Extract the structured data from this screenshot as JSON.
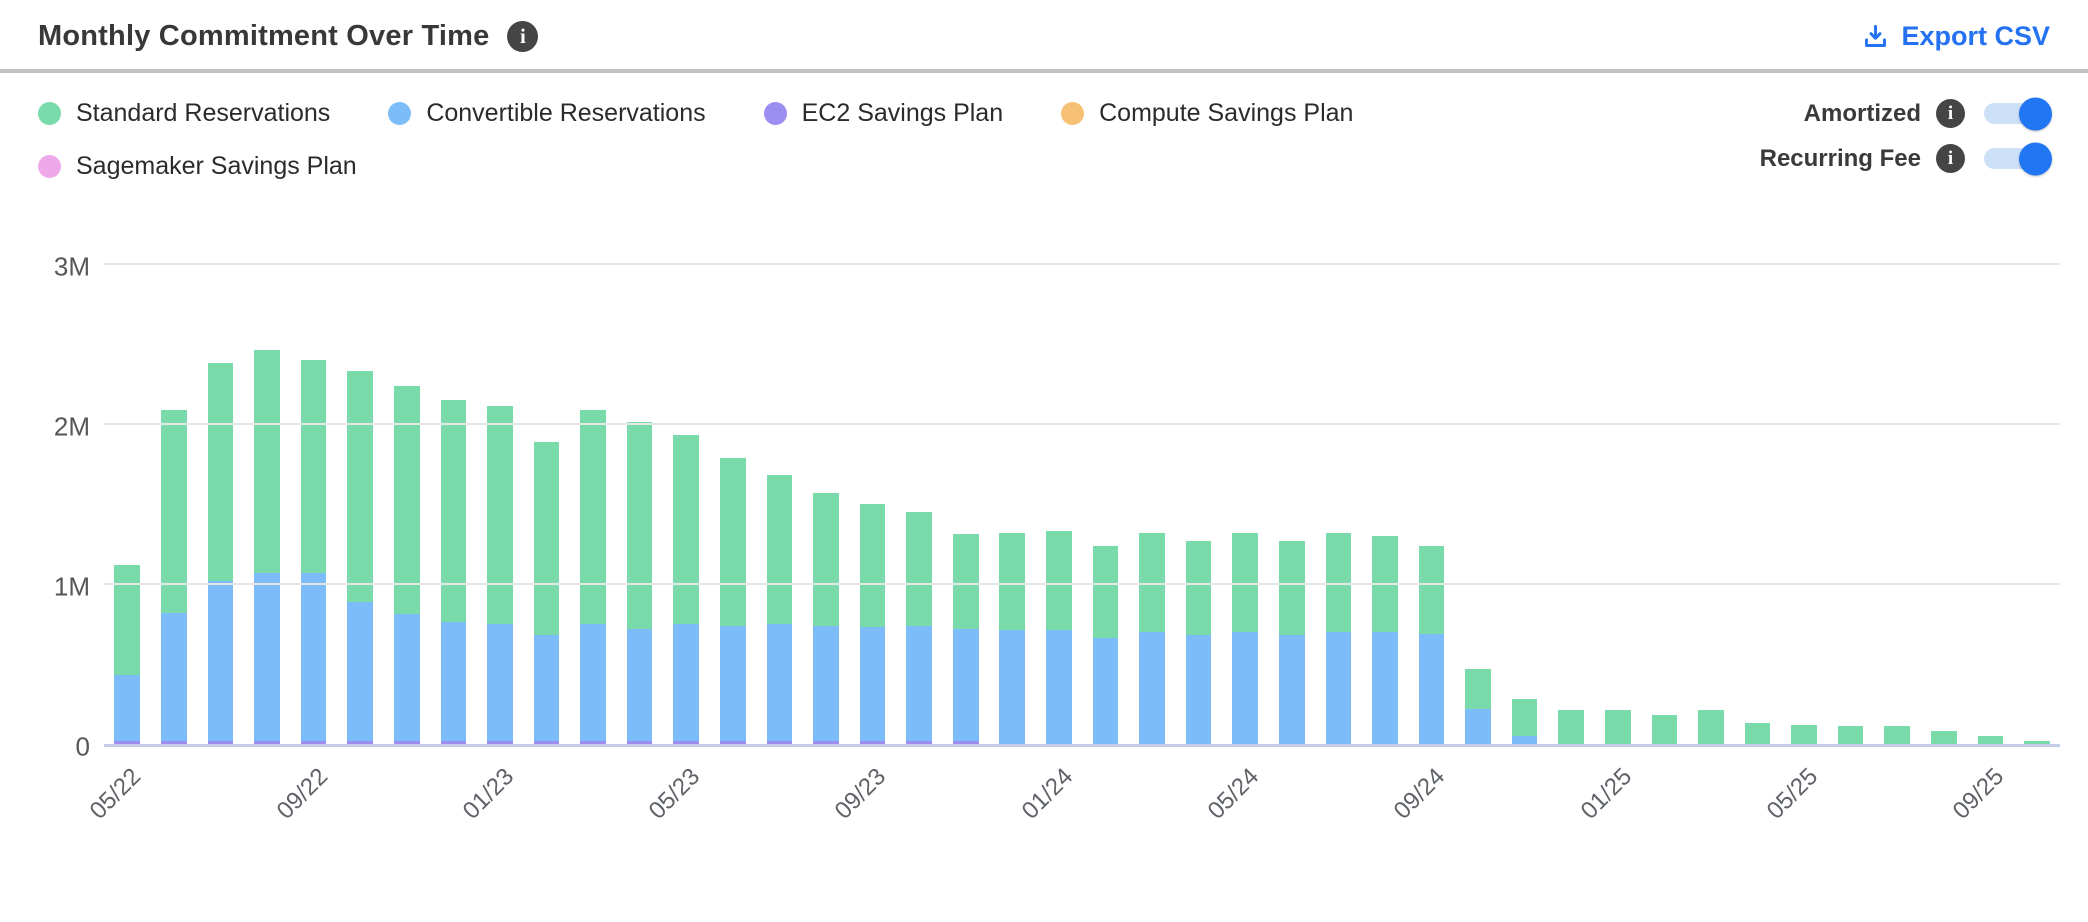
{
  "header": {
    "title": "Monthly Commitment Over Time",
    "title_info_icon": "info-circle",
    "export_label": "Export CSV",
    "export_icon": "download-icon",
    "accent_blue": "#2472f2"
  },
  "toggles": [
    {
      "label": "Amortized",
      "on": true
    },
    {
      "label": "Recurring Fee",
      "on": true
    }
  ],
  "toggle_colors": {
    "track": "#cce0f8",
    "knob": "#2176f3"
  },
  "chart_data": {
    "type": "bar",
    "stacked": true,
    "title": "Monthly Commitment Over Time",
    "unit": "millions (M)",
    "ylim": [
      0,
      3000000
    ],
    "grid": "horizontal",
    "legend_position": "top-left",
    "y_ticks": [
      {
        "label": "3M",
        "value": 3
      },
      {
        "label": "2M",
        "value": 2
      },
      {
        "label": "1M",
        "value": 1
      },
      {
        "label": "0",
        "value": 0
      }
    ],
    "x": [
      "05/22",
      "06/22",
      "07/22",
      "08/22",
      "09/22",
      "10/22",
      "11/22",
      "12/22",
      "01/23",
      "02/23",
      "03/23",
      "04/23",
      "05/23",
      "06/23",
      "07/23",
      "08/23",
      "09/23",
      "10/23",
      "11/23",
      "12/23",
      "01/24",
      "02/24",
      "03/24",
      "04/24",
      "05/24",
      "06/24",
      "07/24",
      "08/24",
      "09/24",
      "10/24",
      "11/24",
      "12/24",
      "01/25",
      "02/25",
      "03/25",
      "04/25",
      "05/25",
      "06/25",
      "07/25",
      "08/25",
      "09/25",
      "10/25"
    ],
    "x_tick_labels": [
      "05/22",
      "09/22",
      "01/23",
      "05/23",
      "09/23",
      "01/24",
      "05/24",
      "09/24",
      "01/25",
      "05/25",
      "09/25"
    ],
    "x_tick_every": 4,
    "series": [
      {
        "name": "Standard Reservations",
        "color": "#79dbaa",
        "values": [
          0.69,
          1.27,
          1.36,
          1.39,
          1.33,
          1.44,
          1.43,
          1.39,
          1.36,
          1.21,
          1.34,
          1.29,
          1.18,
          1.05,
          0.93,
          0.83,
          0.77,
          0.71,
          0.59,
          0.61,
          0.62,
          0.58,
          0.62,
          0.59,
          0.62,
          0.59,
          0.62,
          0.6,
          0.55,
          0.25,
          0.23,
          0.21,
          0.21,
          0.18,
          0.21,
          0.13,
          0.12,
          0.11,
          0.11,
          0.08,
          0.05,
          0.02
        ]
      },
      {
        "name": "Convertible Reservations",
        "color": "#7cbdf9",
        "values": [
          0.41,
          0.8,
          1.0,
          1.05,
          1.05,
          0.87,
          0.79,
          0.74,
          0.73,
          0.66,
          0.73,
          0.7,
          0.73,
          0.72,
          0.73,
          0.72,
          0.71,
          0.72,
          0.7,
          0.71,
          0.71,
          0.66,
          0.7,
          0.68,
          0.7,
          0.68,
          0.7,
          0.7,
          0.69,
          0.22,
          0.05,
          0,
          0,
          0,
          0,
          0,
          0,
          0,
          0,
          0,
          0,
          0
        ]
      },
      {
        "name": "EC2 Savings Plan",
        "color": "#9c8df0",
        "values": [
          0.02,
          0.02,
          0.02,
          0.02,
          0.02,
          0.02,
          0.02,
          0.02,
          0.02,
          0.02,
          0.02,
          0.02,
          0.02,
          0.02,
          0.02,
          0.02,
          0.02,
          0.02,
          0.02,
          0,
          0,
          0,
          0,
          0,
          0,
          0,
          0,
          0,
          0,
          0,
          0,
          0,
          0,
          0,
          0,
          0,
          0,
          0,
          0,
          0,
          0,
          0
        ]
      },
      {
        "name": "Compute Savings Plan",
        "color": "#f6c174",
        "values": [
          0,
          0,
          0,
          0,
          0,
          0,
          0,
          0,
          0,
          0,
          0,
          0,
          0,
          0,
          0,
          0,
          0,
          0,
          0,
          0,
          0,
          0,
          0,
          0,
          0,
          0,
          0,
          0,
          0,
          0,
          0,
          0,
          0,
          0,
          0,
          0,
          0,
          0,
          0,
          0,
          0,
          0
        ]
      },
      {
        "name": "Sagemaker Savings Plan",
        "color": "#efa9eb",
        "values": [
          0,
          0,
          0,
          0,
          0,
          0,
          0,
          0,
          0,
          0,
          0,
          0,
          0,
          0,
          0,
          0,
          0,
          0,
          0,
          0,
          0,
          0,
          0,
          0,
          0,
          0,
          0,
          0,
          0,
          0,
          0,
          0,
          0,
          0,
          0,
          0,
          0,
          0,
          0,
          0,
          0,
          0
        ]
      }
    ]
  }
}
